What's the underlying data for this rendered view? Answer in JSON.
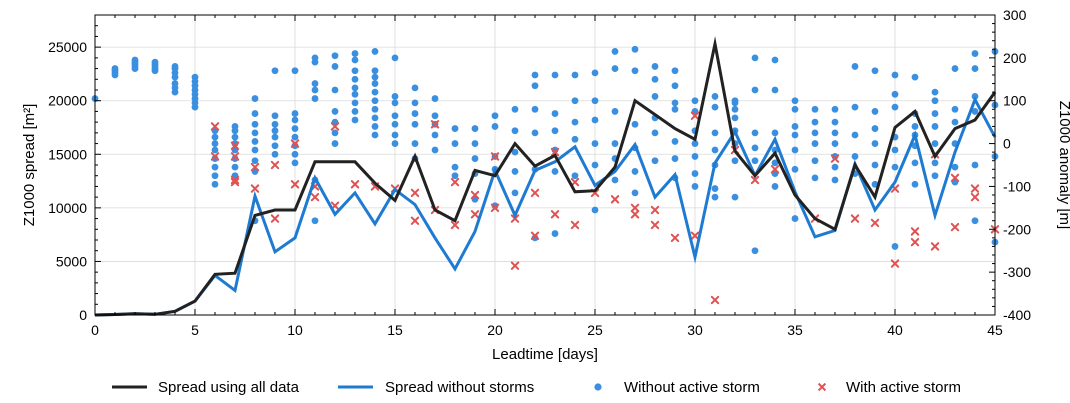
{
  "chart_data": {
    "type": "line",
    "xlabel": "Leadtime [days]",
    "ylabel_left": "Z1000 spread [m²]",
    "ylabel_right": "Z1000 anomaly [m]",
    "xlim": [
      0,
      45
    ],
    "ylim_left": [
      0,
      28000
    ],
    "ylim_right": [
      -400,
      300
    ],
    "x_ticks": [
      0,
      5,
      10,
      15,
      20,
      25,
      30,
      35,
      40,
      45
    ],
    "y_ticks_left": [
      0,
      5000,
      10000,
      15000,
      20000,
      25000
    ],
    "y_tick_labels_left": [
      "0",
      "5000",
      "10000",
      "15000",
      "20000",
      "25000"
    ],
    "y_ticks_right": [
      -400,
      -300,
      -200,
      -100,
      0,
      100,
      200,
      300
    ],
    "grid": true,
    "legend_position": "bottom",
    "colors": {
      "all_data": "#222222",
      "no_storms": "#1f7bd1",
      "without_storm_point": "#3a8fdf",
      "with_storm_point": "#e05252"
    },
    "series": [
      {
        "name": "Spread using all data",
        "axis": "left",
        "x": [
          0,
          1,
          2,
          3,
          4,
          5,
          6,
          7,
          8,
          9,
          10,
          11,
          12,
          13,
          14,
          15,
          16,
          17,
          18,
          19,
          20,
          21,
          22,
          23,
          24,
          25,
          26,
          27,
          28,
          29,
          30,
          31,
          32,
          33,
          34,
          35,
          36,
          37,
          38,
          39,
          40,
          41,
          42,
          43,
          44,
          45
        ],
        "values": [
          0,
          50,
          120,
          70,
          350,
          1300,
          3800,
          3900,
          9300,
          9800,
          9800,
          14300,
          14300,
          14300,
          12300,
          10700,
          14800,
          9800,
          8800,
          13500,
          13000,
          16000,
          13900,
          14900,
          11500,
          11600,
          13800,
          20000,
          18700,
          17400,
          16400,
          25300,
          15300,
          13000,
          15100,
          11200,
          9000,
          8000,
          14000,
          11000,
          17500,
          19000,
          14800,
          17400,
          18200,
          20800
        ]
      },
      {
        "name": "Spread without storms",
        "axis": "left",
        "x": [
          0,
          1,
          2,
          3,
          4,
          5,
          6,
          7,
          8,
          9,
          10,
          11,
          12,
          13,
          14,
          15,
          16,
          17,
          18,
          19,
          20,
          21,
          22,
          23,
          24,
          25,
          26,
          27,
          28,
          29,
          30,
          31,
          32,
          33,
          34,
          35,
          36,
          37,
          38,
          39,
          40,
          41,
          42,
          43,
          44,
          45
        ],
        "values": [
          0,
          50,
          120,
          70,
          350,
          1300,
          3700,
          2300,
          11100,
          5900,
          7200,
          12800,
          9400,
          11400,
          8500,
          11700,
          10300,
          7200,
          4300,
          7800,
          13500,
          9300,
          13500,
          14300,
          15700,
          12100,
          13400,
          15900,
          11000,
          13100,
          5400,
          14200,
          17100,
          13000,
          16400,
          11500,
          7300,
          7900,
          14100,
          9800,
          12400,
          16800,
          9300,
          15200,
          20100,
          16600
        ]
      },
      {
        "name": "Without active storm",
        "axis": "right",
        "x": [
          0,
          1,
          1,
          1,
          1,
          2,
          2,
          2,
          2,
          2,
          3,
          3,
          3,
          3,
          3,
          4,
          4,
          4,
          4,
          4,
          4,
          4,
          5,
          5,
          5,
          5,
          5,
          5,
          5,
          5,
          6,
          6,
          6,
          6,
          6,
          6,
          6,
          6,
          7,
          7,
          7,
          7,
          7,
          7,
          7,
          7,
          8,
          8,
          8,
          8,
          8,
          8,
          8,
          8,
          8,
          9,
          9,
          9,
          9,
          9,
          9,
          9,
          10,
          10,
          10,
          10,
          10,
          10,
          10,
          10,
          11,
          11,
          11,
          11,
          11,
          11,
          11,
          12,
          12,
          12,
          12,
          12,
          12,
          12,
          13,
          13,
          13,
          13,
          13,
          13,
          13,
          13,
          13,
          14,
          14,
          14,
          14,
          14,
          14,
          14,
          14,
          14,
          14,
          15,
          15,
          15,
          15,
          15,
          15,
          15,
          16,
          16,
          16,
          16,
          16,
          16,
          17,
          17,
          17,
          17,
          17,
          18,
          18,
          18,
          18,
          19,
          19,
          19,
          19,
          19,
          20,
          20,
          20,
          20,
          20,
          21,
          21,
          21,
          21,
          21,
          22,
          22,
          22,
          22,
          22,
          22,
          23,
          23,
          23,
          23,
          23,
          23,
          24,
          24,
          24,
          24,
          24,
          25,
          25,
          25,
          25,
          25,
          25,
          26,
          26,
          26,
          26,
          26,
          26,
          27,
          27,
          27,
          27,
          27,
          27,
          28,
          28,
          28,
          28,
          28,
          28,
          29,
          29,
          29,
          29,
          29,
          29,
          29,
          30,
          30,
          30,
          30,
          30,
          30,
          30,
          31,
          31,
          31,
          31,
          31,
          31,
          31,
          32,
          32,
          32,
          32,
          32,
          32,
          32,
          32,
          33,
          33,
          33,
          33,
          33,
          33,
          34,
          34,
          34,
          34,
          34,
          34,
          34,
          35,
          35,
          35,
          35,
          35,
          35,
          35,
          36,
          36,
          36,
          36,
          36,
          36,
          37,
          37,
          37,
          37,
          37,
          37,
          37,
          38,
          38,
          38,
          38,
          38,
          39,
          39,
          39,
          39,
          39,
          39,
          40,
          40,
          40,
          40,
          40,
          40,
          40,
          41,
          41,
          41,
          41,
          41,
          41,
          41,
          42,
          42,
          42,
          42,
          42,
          42,
          42,
          43,
          43,
          43,
          43,
          43,
          43,
          44,
          44,
          44,
          44,
          44,
          44,
          45,
          45,
          45,
          45
        ],
        "values": [
          105,
          160,
          165,
          170,
          175,
          195,
          190,
          185,
          180,
          175,
          190,
          185,
          180,
          175,
          170,
          180,
          175,
          165,
          155,
          140,
          130,
          120,
          155,
          145,
          135,
          125,
          115,
          105,
          95,
          85,
          30,
          15,
          0,
          -15,
          -35,
          -55,
          -75,
          -95,
          40,
          30,
          15,
          0,
          -15,
          -35,
          -55,
          -75,
          105,
          70,
          45,
          25,
          5,
          -15,
          -40,
          -65,
          -180,
          170,
          65,
          45,
          30,
          15,
          -5,
          -25,
          170,
          70,
          55,
          35,
          15,
          -5,
          -25,
          -45,
          200,
          190,
          140,
          125,
          105,
          -85,
          -180,
          205,
          180,
          125,
          75,
          50,
          25,
          0,
          210,
          195,
          170,
          150,
          130,
          115,
          95,
          75,
          55,
          215,
          170,
          155,
          140,
          120,
          100,
          80,
          60,
          40,
          20,
          200,
          110,
          95,
          65,
          45,
          20,
          0,
          130,
          95,
          70,
          45,
          0,
          -35,
          105,
          65,
          45,
          20,
          -15,
          35,
          0,
          -55,
          -75,
          35,
          0,
          -35,
          -70,
          -130,
          65,
          40,
          -30,
          -60,
          -145,
          80,
          30,
          -20,
          -65,
          -115,
          160,
          135,
          80,
          25,
          -60,
          -220,
          160,
          70,
          30,
          -15,
          -65,
          -210,
          160,
          100,
          50,
          10,
          -75,
          165,
          100,
          55,
          0,
          -50,
          -155,
          215,
          175,
          75,
          0,
          -35,
          -85,
          220,
          170,
          45,
          -10,
          -65,
          -115,
          180,
          150,
          110,
          60,
          25,
          -40,
          170,
          135,
          95,
          80,
          5,
          -35,
          -80,
          100,
          75,
          30,
          0,
          -30,
          -70,
          -100,
          110,
          85,
          25,
          -15,
          -50,
          -105,
          -125,
          100,
          95,
          80,
          60,
          30,
          0,
          -40,
          -125,
          200,
          125,
          25,
          -10,
          -40,
          -250,
          195,
          125,
          25,
          -15,
          -45,
          -70,
          -100,
          100,
          80,
          40,
          20,
          -15,
          -60,
          -175,
          80,
          50,
          25,
          0,
          -40,
          -80,
          80,
          50,
          25,
          0,
          -30,
          -55,
          -85,
          180,
          85,
          20,
          -30,
          -70,
          170,
          75,
          35,
          0,
          -50,
          -95,
          160,
          115,
          85,
          15,
          -15,
          -55,
          -240,
          155,
          70,
          40,
          20,
          -5,
          -45,
          -95,
          120,
          100,
          70,
          40,
          0,
          -45,
          -75,
          175,
          80,
          50,
          0,
          -55,
          -90,
          210,
          175,
          110,
          75,
          -50,
          -180,
          215,
          90,
          -30,
          -230
        ]
      },
      {
        "name": "With active storm",
        "axis": "right",
        "x": [
          6,
          6,
          7,
          7,
          7,
          7,
          8,
          8,
          9,
          9,
          10,
          10,
          11,
          11,
          12,
          12,
          13,
          14,
          15,
          16,
          16,
          17,
          17,
          18,
          18,
          19,
          19,
          20,
          20,
          21,
          21,
          22,
          22,
          23,
          23,
          24,
          24,
          25,
          26,
          27,
          27,
          28,
          28,
          29,
          30,
          30,
          31,
          32,
          33,
          34,
          36,
          37,
          38,
          39,
          40,
          40,
          41,
          41,
          42,
          42,
          43,
          43,
          44,
          44,
          45
        ],
        "values": [
          40,
          -30,
          -30,
          -85,
          -90,
          -5,
          -55,
          -105,
          -50,
          -175,
          -95,
          0,
          -100,
          -125,
          -145,
          40,
          -95,
          -100,
          -105,
          -115,
          -180,
          -155,
          45,
          -90,
          -190,
          -120,
          -165,
          -150,
          -30,
          -175,
          -285,
          -115,
          -215,
          -20,
          -165,
          -90,
          -190,
          -115,
          -130,
          -150,
          -165,
          -190,
          -155,
          -220,
          -215,
          65,
          -365,
          -15,
          -85,
          -60,
          -175,
          -35,
          -175,
          -185,
          -105,
          -280,
          -205,
          -230,
          -25,
          -240,
          -80,
          -195,
          -105,
          -125,
          -200
        ]
      }
    ]
  }
}
